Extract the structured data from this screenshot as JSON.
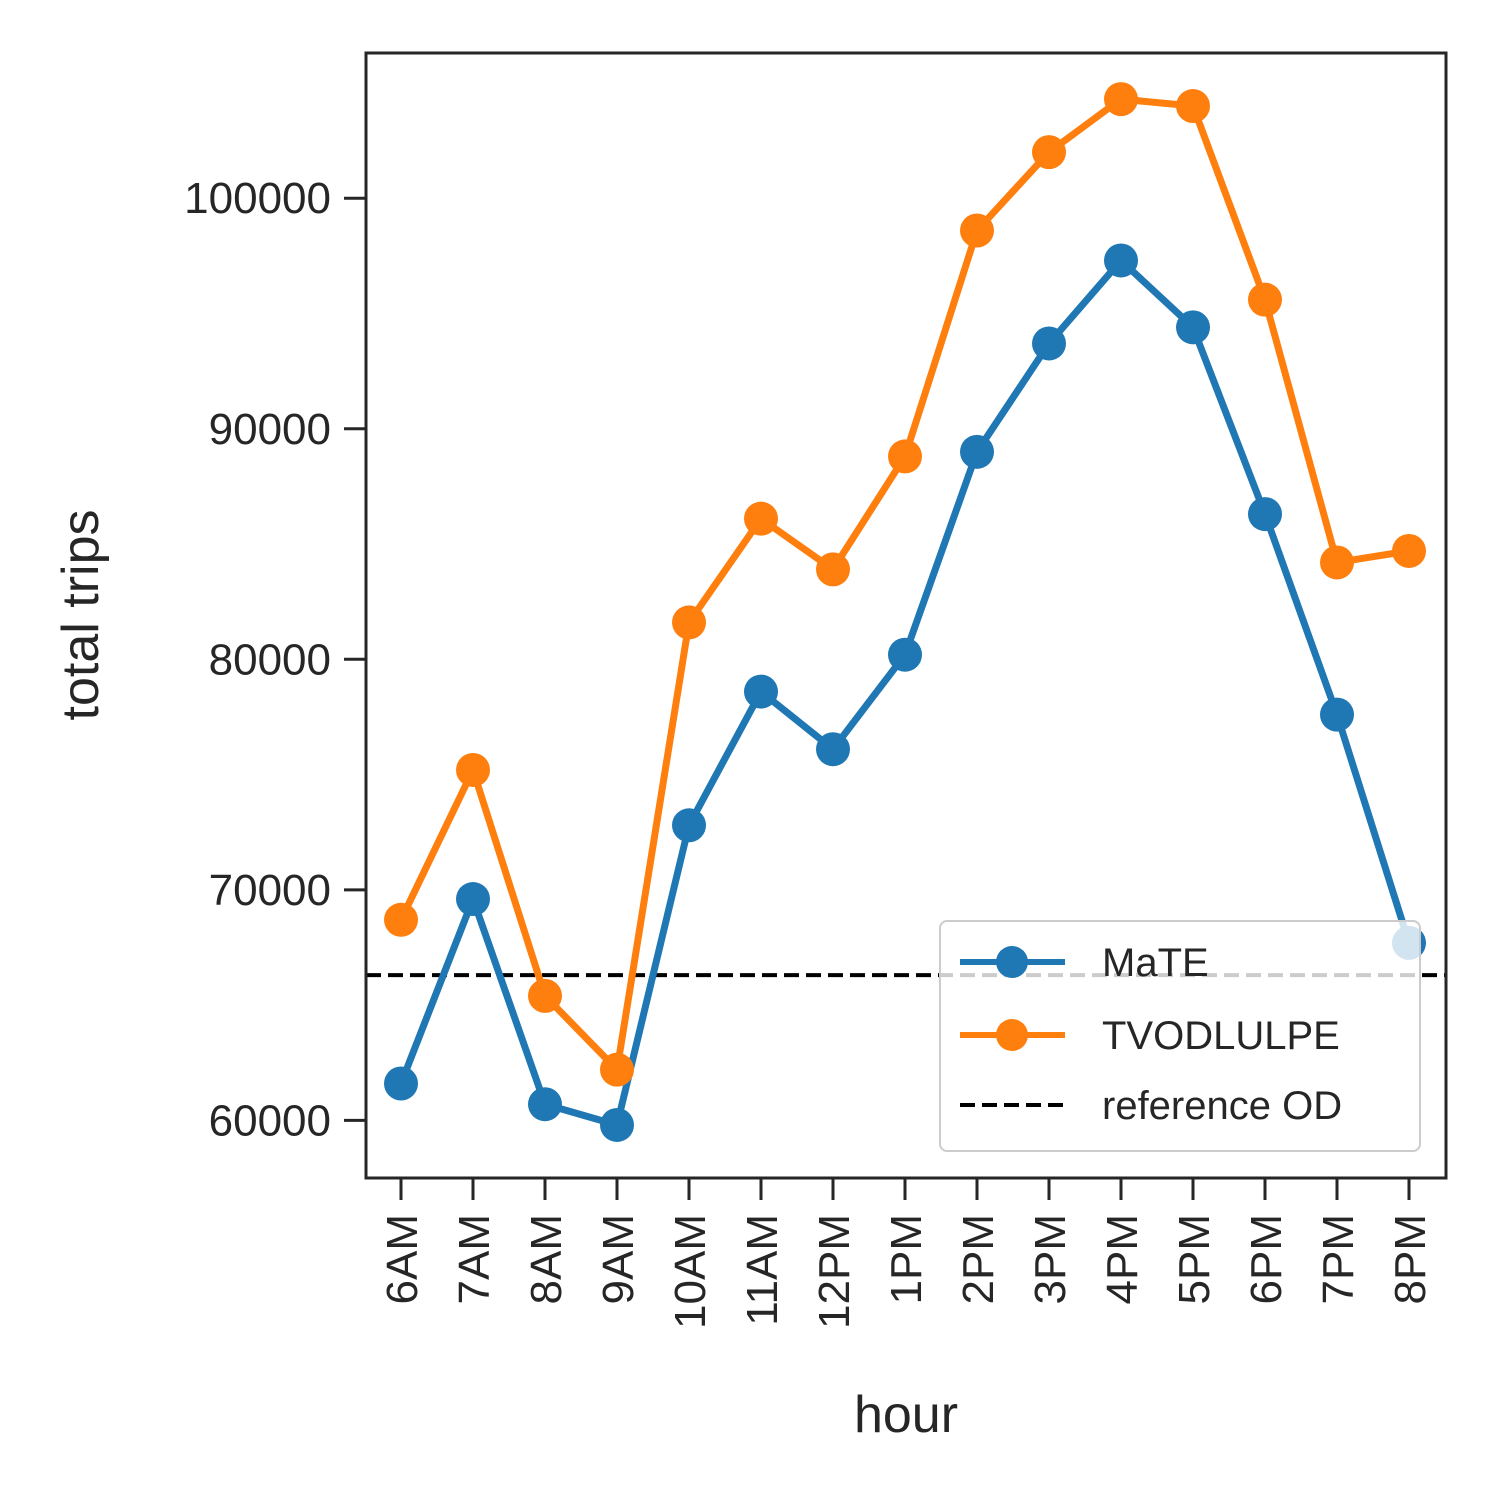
{
  "chart_data": {
    "type": "line",
    "title": "",
    "xlabel": "hour",
    "ylabel": "total trips",
    "categories": [
      "6AM",
      "7AM",
      "8AM",
      "9AM",
      "10AM",
      "11AM",
      "12PM",
      "1PM",
      "2PM",
      "3PM",
      "4PM",
      "5PM",
      "6PM",
      "7PM",
      "8PM"
    ],
    "ylim": [
      57500,
      106300
    ],
    "yticks": [
      60000,
      70000,
      80000,
      90000,
      100000
    ],
    "grid": false,
    "legend_position": "lower right",
    "series": [
      {
        "name": "MaTE",
        "color": "#1f77b4",
        "values": [
          61600,
          69600,
          60700,
          59800,
          72800,
          78600,
          76100,
          80200,
          89000,
          93700,
          97300,
          94400,
          86300,
          77600,
          67700
        ]
      },
      {
        "name": "TVODLULPE",
        "color": "#ff7f0e",
        "values": [
          68700,
          75200,
          65400,
          62200,
          81600,
          86100,
          83900,
          88800,
          98600,
          102000,
          104300,
          104000,
          95600,
          84200,
          84700
        ]
      }
    ],
    "reference_lines": [
      {
        "name": "reference OD",
        "y": 66300,
        "color": "#000000",
        "style": "dashed"
      }
    ]
  }
}
